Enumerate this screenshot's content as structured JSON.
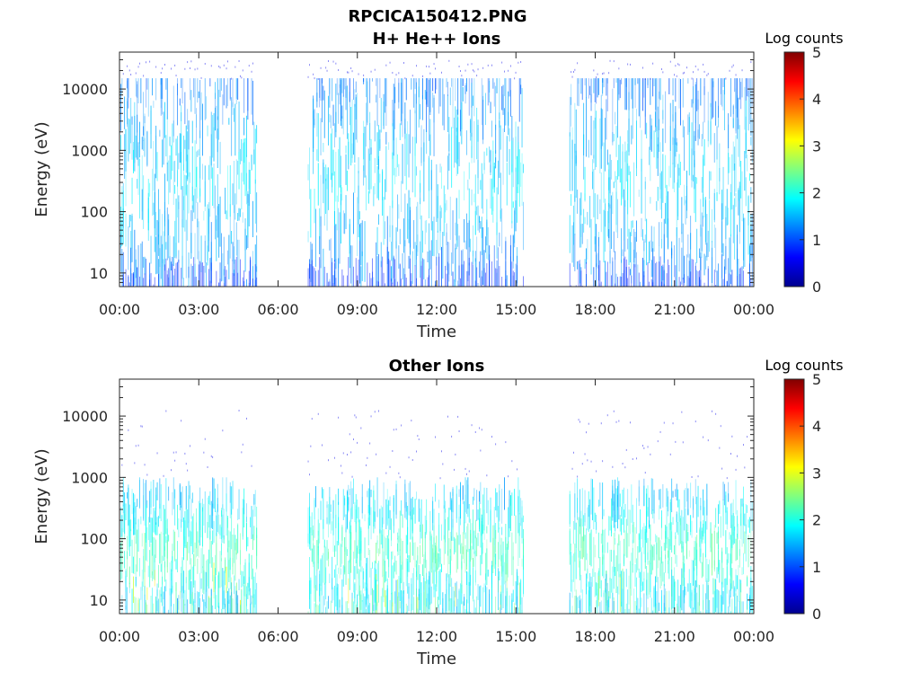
{
  "figure": {
    "title": "RPCICA150412.PNG"
  },
  "chart_data": [
    {
      "type": "heatmap",
      "title": "H+ He++ Ions",
      "xlabel": "Time",
      "ylabel": "Energy (eV)",
      "x_ticks": [
        "00:00",
        "03:00",
        "06:00",
        "09:00",
        "12:00",
        "15:00",
        "18:00",
        "21:00",
        "00:00"
      ],
      "x_range_hours": [
        0,
        24
      ],
      "y_scale": "log",
      "y_range": [
        6,
        40000
      ],
      "y_ticks": [
        10,
        100,
        1000,
        10000
      ],
      "y_tick_labels": [
        "10",
        "100",
        "1000",
        "10000"
      ],
      "data_gaps_hours": [
        [
          5.2,
          7.1
        ],
        [
          15.3,
          17.0
        ]
      ],
      "intensity_band": {
        "min_energy": 6,
        "max_energy": 15000,
        "peak_energy": 300
      },
      "colorbar": {
        "label": "Log counts",
        "range": [
          0,
          5
        ],
        "ticks": [
          "0",
          "1",
          "2",
          "3",
          "4",
          "5"
        ],
        "colormap": "jet"
      }
    },
    {
      "type": "heatmap",
      "title": "Other Ions",
      "xlabel": "Time",
      "ylabel": "Energy (eV)",
      "x_ticks": [
        "00:00",
        "03:00",
        "06:00",
        "09:00",
        "12:00",
        "15:00",
        "18:00",
        "21:00",
        "00:00"
      ],
      "x_range_hours": [
        0,
        24
      ],
      "y_scale": "log",
      "y_range": [
        6,
        40000
      ],
      "y_ticks": [
        10,
        100,
        1000,
        10000
      ],
      "y_tick_labels": [
        "10",
        "100",
        "1000",
        "10000"
      ],
      "data_gaps_hours": [
        [
          5.2,
          7.1
        ],
        [
          15.3,
          17.0
        ]
      ],
      "intensity_band": {
        "min_energy": 6,
        "max_energy": 1000,
        "peak_energy": 60
      },
      "colorbar": {
        "label": "Log counts",
        "range": [
          0,
          5
        ],
        "ticks": [
          "0",
          "1",
          "2",
          "3",
          "4",
          "5"
        ],
        "colormap": "jet"
      }
    }
  ]
}
